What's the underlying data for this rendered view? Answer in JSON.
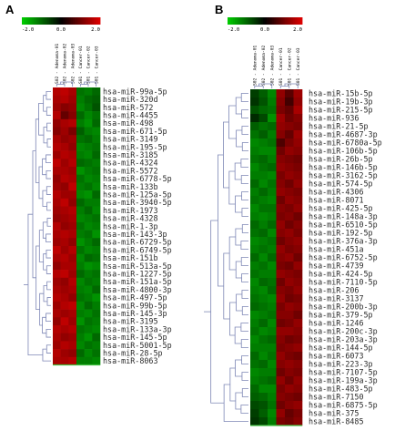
{
  "chart_data": [
    {
      "type": "heatmap",
      "panel_label": "A",
      "colorscale": {
        "ticks": [
          "-2.0",
          "0.0",
          "2.0"
        ],
        "range": [
          -2.0,
          2.0
        ],
        "low_color": "#00d000",
        "mid_color": "#000000",
        "high_color": "#e00000"
      },
      "columns": [
        "S02 - Adenoma-01",
        "S02 - Adenoma-02",
        "S02 - Adenoma-03",
        "S01 - Cancer-01",
        "S01 - Cancer-02",
        "S01 - Cancer-03"
      ],
      "rows": [
        "hsa-miR-99a-5p",
        "hsa-miR-320d",
        "hsa-miR-572",
        "hsa-miR-4455",
        "hsa-miR-498",
        "hsa-miR-671-5p",
        "hsa-miR-3149",
        "hsa-miR-195-5p",
        "hsa-miR-3185",
        "hsa-miR-4324",
        "hsa-miR-5572",
        "hsa-miR-6778-5p",
        "hsa-miR-133b",
        "hsa-miR-125a-5p",
        "hsa-miR-3940-5p",
        "hsa-miR-1973",
        "hsa-miR-4328",
        "hsa-miR-1-3p",
        "hsa-miR-143-3p",
        "hsa-miR-6729-5p",
        "hsa-miR-6749-5p",
        "hsa-miR-151b",
        "hsa-miR-513a-5p",
        "hsa-miR-1227-5p",
        "hsa-miR-151a-5p",
        "hsa-miR-4800-3p",
        "hsa-miR-497-5p",
        "hsa-miR-99b-5p",
        "hsa-miR-145-3p",
        "hsa-miR-3195",
        "hsa-miR-133a-3p",
        "hsa-miR-145-5p",
        "hsa-miR-5001-5p",
        "hsa-miR-28-5p",
        "hsa-miR-8063"
      ],
      "values": [
        [
          1.6,
          1.7,
          1.5,
          -1.1,
          -1.2,
          -1.0
        ],
        [
          1.5,
          1.6,
          1.4,
          -1.2,
          -1.0,
          -0.9
        ],
        [
          1.4,
          1.2,
          1.3,
          -1.3,
          -1.1,
          -0.8
        ],
        [
          1.6,
          0.9,
          1.2,
          -1.0,
          -1.3,
          -1.1
        ],
        [
          1.3,
          1.5,
          1.6,
          -1.2,
          -1.4,
          -1.0
        ],
        [
          1.2,
          1.4,
          1.1,
          -0.9,
          -1.2,
          -1.3
        ],
        [
          1.5,
          1.3,
          1.4,
          -1.1,
          -1.0,
          -1.2
        ],
        [
          1.6,
          1.5,
          1.3,
          -1.3,
          -1.2,
          -1.1
        ],
        [
          1.4,
          1.6,
          1.5,
          -1.2,
          -1.3,
          -1.0
        ],
        [
          1.7,
          1.4,
          1.6,
          -1.0,
          -1.1,
          -1.2
        ],
        [
          1.5,
          1.5,
          1.4,
          -1.4,
          -1.2,
          -1.1
        ],
        [
          1.3,
          1.6,
          1.5,
          -1.1,
          -1.3,
          -1.2
        ],
        [
          1.4,
          1.3,
          1.7,
          -1.2,
          -1.1,
          -1.3
        ],
        [
          1.6,
          1.4,
          1.4,
          -1.3,
          -1.4,
          -1.0
        ],
        [
          1.5,
          1.7,
          1.3,
          -1.0,
          -1.2,
          -1.2
        ],
        [
          1.4,
          1.5,
          1.6,
          -1.2,
          -1.0,
          -1.3
        ],
        [
          1.3,
          1.4,
          1.5,
          -1.3,
          -1.2,
          -1.1
        ],
        [
          1.6,
          1.3,
          1.4,
          -1.1,
          -1.3,
          -1.2
        ],
        [
          1.5,
          1.6,
          1.5,
          -1.2,
          -1.1,
          -1.4
        ],
        [
          1.4,
          1.5,
          1.3,
          -1.4,
          -1.2,
          -1.0
        ],
        [
          1.7,
          1.4,
          1.6,
          -1.1,
          -1.3,
          -1.2
        ],
        [
          1.5,
          1.6,
          1.4,
          -1.3,
          -1.0,
          -1.1
        ],
        [
          1.3,
          1.5,
          1.5,
          -1.2,
          -1.4,
          -1.3
        ],
        [
          1.6,
          1.7,
          1.4,
          -1.0,
          -1.2,
          -1.1
        ],
        [
          1.4,
          1.3,
          1.6,
          -1.3,
          -1.1,
          -1.2
        ],
        [
          1.5,
          1.4,
          1.5,
          -1.2,
          -1.3,
          -1.0
        ],
        [
          1.6,
          1.5,
          1.3,
          -1.1,
          -1.2,
          -1.4
        ],
        [
          1.4,
          1.6,
          1.7,
          -1.3,
          -1.0,
          -1.2
        ],
        [
          1.5,
          1.4,
          1.5,
          -1.2,
          -1.3,
          -1.1
        ],
        [
          1.3,
          1.7,
          1.4,
          -1.4,
          -1.1,
          -1.2
        ],
        [
          1.6,
          1.5,
          1.6,
          -1.1,
          -1.2,
          -1.3
        ],
        [
          1.5,
          1.3,
          1.4,
          -1.2,
          -1.4,
          -1.0
        ],
        [
          1.4,
          1.6,
          1.5,
          -1.3,
          -1.1,
          -1.2
        ],
        [
          1.6,
          1.4,
          1.3,
          -1.0,
          -1.3,
          -1.1
        ],
        [
          1.5,
          1.5,
          1.6,
          -1.2,
          -1.2,
          -1.3
        ]
      ]
    },
    {
      "type": "heatmap",
      "panel_label": "B",
      "colorscale": {
        "ticks": [
          "-2.0",
          "0.0",
          "2.0"
        ],
        "range": [
          -2.0,
          2.0
        ],
        "low_color": "#00d000",
        "mid_color": "#000000",
        "high_color": "#e00000"
      },
      "columns": [
        "S02 - Adenoma-01",
        "S02 - Adenoma-02",
        "S02 - Adenoma-03",
        "S01 - Cancer-01",
        "S01 - Cancer-02",
        "S01 - Cancer-03"
      ],
      "rows": [
        "hsa-miR-15b-5p",
        "hsa-miR-19b-3p",
        "hsa-miR-215-5p",
        "hsa-miR-936",
        "hsa-miR-21-5p",
        "hsa-miR-4687-3p",
        "hsa-miR-6780a-5p",
        "hsa-miR-106b-5p",
        "hsa-miR-26b-5p",
        "hsa-miR-146b-5p",
        "hsa-miR-3162-5p",
        "hsa-miR-574-5p",
        "hsa-miR-4306",
        "hsa-miR-8071",
        "hsa-miR-425-5p",
        "hsa-miR-148a-3p",
        "hsa-miR-6510-5p",
        "hsa-miR-192-5p",
        "hsa-miR-376a-3p",
        "hsa-miR-451a",
        "hsa-miR-6752-5p",
        "hsa-miR-4739",
        "hsa-miR-424-5p",
        "hsa-miR-7110-5p",
        "hsa-miR-206",
        "hsa-miR-3137",
        "hsa-miR-200b-3p",
        "hsa-miR-379-5p",
        "hsa-miR-1246",
        "hsa-miR-200c-3p",
        "hsa-miR-203a-3p",
        "hsa-miR-144-5p",
        "hsa-miR-6073",
        "hsa-miR-223-3p",
        "hsa-miR-7107-5p",
        "hsa-miR-199a-3p",
        "hsa-miR-483-5p",
        "hsa-miR-7150",
        "hsa-miR-6875-5p",
        "hsa-miR-375",
        "hsa-miR-8485"
      ],
      "values": [
        [
          -0.6,
          -0.9,
          -1.3,
          1.3,
          0.8,
          1.4
        ],
        [
          -0.5,
          -0.8,
          -1.2,
          1.2,
          0.6,
          1.3
        ],
        [
          -0.8,
          -1.0,
          -1.1,
          1.1,
          0.9,
          1.5
        ],
        [
          -0.4,
          -0.7,
          -1.4,
          1.4,
          1.0,
          1.2
        ],
        [
          -0.9,
          -1.1,
          -1.0,
          1.3,
          1.2,
          1.1
        ],
        [
          -1.1,
          -0.9,
          -1.2,
          1.2,
          0.9,
          1.4
        ],
        [
          -1.3,
          -1.2,
          -1.1,
          0.7,
          1.1,
          1.3
        ],
        [
          -1.2,
          -1.3,
          -1.3,
          1.0,
          1.3,
          1.2
        ],
        [
          -1.1,
          -1.0,
          -1.2,
          1.2,
          1.1,
          1.0
        ],
        [
          -1.3,
          -1.1,
          -1.0,
          1.3,
          1.2,
          1.1
        ],
        [
          -1.2,
          -1.2,
          -1.3,
          1.1,
          1.3,
          1.2
        ],
        [
          -1.0,
          -1.3,
          -1.1,
          1.2,
          1.0,
          1.3
        ],
        [
          -1.2,
          -1.0,
          -1.2,
          1.3,
          1.2,
          1.1
        ],
        [
          -1.1,
          -1.2,
          -1.3,
          1.0,
          1.3,
          1.2
        ],
        [
          -1.3,
          -1.1,
          -1.1,
          1.2,
          1.1,
          1.3
        ],
        [
          -1.2,
          -1.3,
          -1.2,
          1.1,
          1.2,
          1.0
        ],
        [
          -1.0,
          -1.2,
          -1.0,
          1.3,
          1.0,
          1.2
        ],
        [
          -1.1,
          -1.0,
          -1.3,
          1.2,
          1.3,
          1.1
        ],
        [
          -1.3,
          -1.2,
          -1.1,
          1.0,
          1.2,
          1.3
        ],
        [
          -1.2,
          -1.1,
          -1.2,
          1.3,
          1.1,
          1.2
        ],
        [
          -1.0,
          -1.3,
          -1.0,
          1.2,
          1.3,
          1.0
        ],
        [
          -1.2,
          -1.1,
          -1.3,
          1.1,
          1.0,
          1.3
        ],
        [
          -1.1,
          -1.2,
          -1.2,
          1.3,
          1.2,
          1.1
        ],
        [
          -1.3,
          -1.0,
          -1.1,
          1.0,
          1.3,
          1.2
        ],
        [
          -1.2,
          -1.3,
          -1.0,
          1.2,
          1.1,
          1.3
        ],
        [
          -1.1,
          -1.2,
          -1.3,
          1.3,
          1.0,
          1.1
        ],
        [
          -1.0,
          -1.1,
          -1.2,
          1.1,
          1.3,
          1.2
        ],
        [
          -1.3,
          -1.2,
          -1.1,
          1.2,
          1.2,
          1.0
        ],
        [
          -1.2,
          -1.0,
          -1.3,
          1.0,
          1.1,
          1.3
        ],
        [
          -1.1,
          -1.3,
          -1.2,
          1.3,
          1.3,
          1.2
        ],
        [
          -1.3,
          -1.1,
          -1.0,
          1.2,
          1.0,
          1.1
        ],
        [
          -1.2,
          -1.2,
          -1.2,
          1.1,
          1.2,
          1.3
        ],
        [
          -1.0,
          -1.3,
          -1.1,
          1.3,
          1.1,
          1.0
        ],
        [
          -1.1,
          -1.0,
          -1.3,
          1.2,
          1.3,
          1.2
        ],
        [
          -1.3,
          -1.2,
          -1.2,
          1.0,
          1.2,
          1.1
        ],
        [
          -1.2,
          -1.1,
          -1.0,
          1.3,
          1.0,
          1.3
        ],
        [
          -1.0,
          -1.3,
          -1.3,
          1.1,
          1.3,
          1.2
        ],
        [
          -0.9,
          -1.0,
          -1.2,
          1.2,
          1.1,
          1.0
        ],
        [
          -0.7,
          -0.8,
          -1.1,
          1.0,
          1.2,
          1.3
        ],
        [
          -0.6,
          -0.9,
          -1.3,
          1.3,
          0.9,
          1.1
        ],
        [
          -0.5,
          -0.7,
          -1.2,
          1.1,
          1.0,
          1.2
        ]
      ]
    }
  ]
}
